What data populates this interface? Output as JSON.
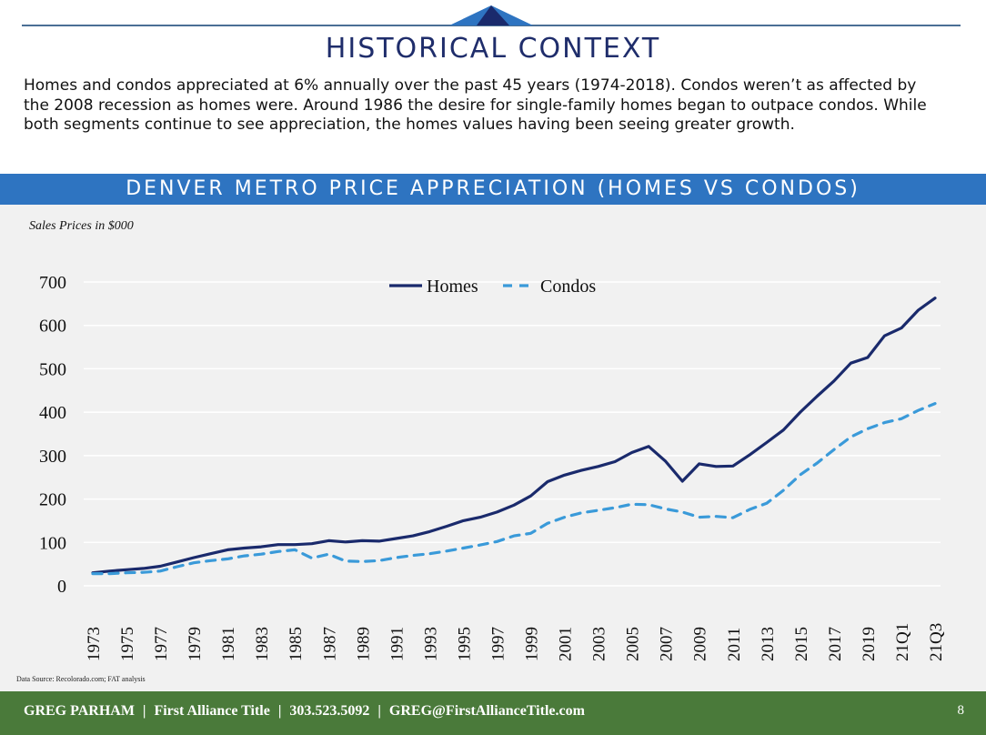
{
  "header": {
    "title": "HISTORICAL CONTEXT",
    "intro_lines": [
      "Homes and condos appreciated at 6% annually over the past 45 years (1974-2018).  Condos weren’t as affected by",
      "the 2008 recession as homes were. Around 1986 the desire for single-family homes began to outpace condos. While",
      "both segments continue to see appreciation, the homes values having been seeing greater growth."
    ]
  },
  "banner": {
    "title": "DENVER METRO PRICE APPRECIATION (HOMES VS CONDOS)"
  },
  "colors": {
    "homes": "#1a2a6c",
    "condos": "#3a9ad9",
    "banner": "#2e74c1",
    "footer": "#4a7a3a",
    "title": "#1f2d6b"
  },
  "chart_data": {
    "type": "line",
    "title": "DENVER METRO PRICE APPRECIATION (HOMES VS CONDOS)",
    "ylabel": "Sales Prices in $000",
    "xlabel": "",
    "ylim": [
      0,
      700
    ],
    "yticks": [
      0,
      100,
      200,
      300,
      400,
      500,
      600,
      700
    ],
    "x_tick_labels": [
      "1973",
      "1975",
      "1977",
      "1979",
      "1981",
      "1983",
      "1985",
      "1987",
      "1989",
      "1991",
      "1993",
      "1995",
      "1997",
      "1999",
      "2001",
      "2003",
      "2005",
      "2007",
      "2009",
      "2011",
      "2013",
      "2015",
      "2017",
      "2019",
      "21Q1",
      "21Q3"
    ],
    "legend_position": "top-center",
    "series": [
      {
        "name": "Homes",
        "style": "solid",
        "values": [
          30,
          34,
          37,
          40,
          45,
          55,
          65,
          74,
          83,
          87,
          90,
          95,
          95,
          97,
          104,
          101,
          104,
          103,
          109,
          115,
          125,
          137,
          150,
          158,
          170,
          186,
          207,
          240,
          255,
          266,
          275,
          286,
          307,
          321,
          287,
          241,
          281,
          275,
          276,
          302,
          330,
          359,
          400,
          437,
          472,
          513,
          526,
          576,
          594,
          635,
          663
        ]
      },
      {
        "name": "Condos",
        "style": "dashed",
        "values": [
          28,
          28,
          30,
          31,
          34,
          44,
          53,
          58,
          62,
          69,
          73,
          79,
          83,
          64,
          73,
          57,
          56,
          58,
          65,
          70,
          74,
          80,
          87,
          94,
          102,
          115,
          121,
          144,
          158,
          168,
          174,
          180,
          188,
          187,
          177,
          170,
          158,
          160,
          157,
          176,
          190,
          220,
          256,
          283,
          314,
          343,
          362,
          376,
          385,
          404,
          420
        ]
      }
    ]
  },
  "source_note": "Data Source: Recolorado.com; FAT analysis",
  "footer": {
    "name": "GREG PARHAM",
    "company": "First Alliance Title",
    "phone": "303.523.5092",
    "email": "GREG@FirstAllianceTitle.com",
    "separator": "|",
    "page_number": "8"
  }
}
